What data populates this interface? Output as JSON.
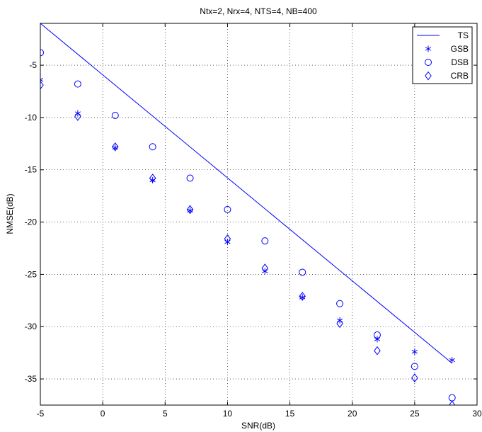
{
  "chart_data": {
    "type": "line",
    "title": "Ntx=2, Nrx=4, NTS=4, NB=400",
    "xlabel": "SNR(dB)",
    "ylabel": "NMSE(dB)",
    "xlim": [
      -5,
      30
    ],
    "ylim": [
      -37.5,
      -1
    ],
    "xticks": [
      -5,
      0,
      5,
      10,
      15,
      20,
      25,
      30
    ],
    "yticks": [
      -35,
      -30,
      -25,
      -20,
      -15,
      -10,
      -5
    ],
    "grid": true,
    "legend_position": "top-right",
    "color": "#0000ff",
    "series": [
      {
        "name": "TS",
        "marker": "line",
        "points": [
          [
            -5,
            -1
          ],
          [
            28,
            -33.5
          ]
        ]
      },
      {
        "name": "GSB",
        "marker": "asterisk",
        "points": [
          [
            -5,
            -6.4
          ],
          [
            -2,
            -9.6
          ],
          [
            1,
            -12.9
          ],
          [
            4,
            -16.0
          ],
          [
            7,
            -18.9
          ],
          [
            10,
            -21.9
          ],
          [
            13,
            -24.7
          ],
          [
            16,
            -27.2
          ],
          [
            19,
            -29.4
          ],
          [
            22,
            -31.2
          ],
          [
            25,
            -32.4
          ],
          [
            28,
            -33.2
          ]
        ]
      },
      {
        "name": "DSB",
        "marker": "circle",
        "points": [
          [
            -5,
            -3.8
          ],
          [
            -2,
            -6.8
          ],
          [
            1,
            -9.8
          ],
          [
            4,
            -12.8
          ],
          [
            7,
            -15.8
          ],
          [
            10,
            -18.8
          ],
          [
            13,
            -21.8
          ],
          [
            16,
            -24.8
          ],
          [
            19,
            -27.8
          ],
          [
            22,
            -30.8
          ],
          [
            25,
            -33.8
          ],
          [
            28,
            -36.8
          ]
        ]
      },
      {
        "name": "CRB",
        "marker": "diamond",
        "points": [
          [
            -5,
            -6.9
          ],
          [
            -2,
            -9.9
          ],
          [
            1,
            -12.8
          ],
          [
            4,
            -15.8
          ],
          [
            7,
            -18.8
          ],
          [
            10,
            -21.6
          ],
          [
            13,
            -24.4
          ],
          [
            16,
            -27.1
          ],
          [
            19,
            -29.7
          ],
          [
            22,
            -32.3
          ],
          [
            25,
            -34.9
          ],
          [
            28,
            -37.5
          ]
        ]
      }
    ]
  }
}
